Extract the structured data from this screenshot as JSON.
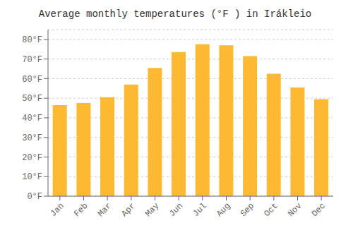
{
  "chart_data": {
    "type": "bar",
    "title": "Average monthly temperatures (°F ) in Irákleio",
    "categories": [
      "Jan",
      "Feb",
      "Mar",
      "Apr",
      "May",
      "Jun",
      "Jul",
      "Aug",
      "Sep",
      "Oct",
      "Nov",
      "Dec"
    ],
    "values": [
      46.5,
      47.5,
      50.5,
      57,
      65.5,
      73.5,
      77.5,
      77,
      71.5,
      62.5,
      55.5,
      49.5
    ],
    "color": "#FDB931",
    "ylim": [
      0,
      85
    ],
    "yticks": [
      {
        "value": 0,
        "label": "0°F"
      },
      {
        "value": 10,
        "label": "10°F"
      },
      {
        "value": 20,
        "label": "20°F"
      },
      {
        "value": 30,
        "label": "30°F"
      },
      {
        "value": 40,
        "label": "40°F"
      },
      {
        "value": 50,
        "label": "50°F"
      },
      {
        "value": 60,
        "label": "60°F"
      },
      {
        "value": 70,
        "label": "70°F"
      },
      {
        "value": 80,
        "label": "80°F"
      }
    ],
    "grid": true
  }
}
